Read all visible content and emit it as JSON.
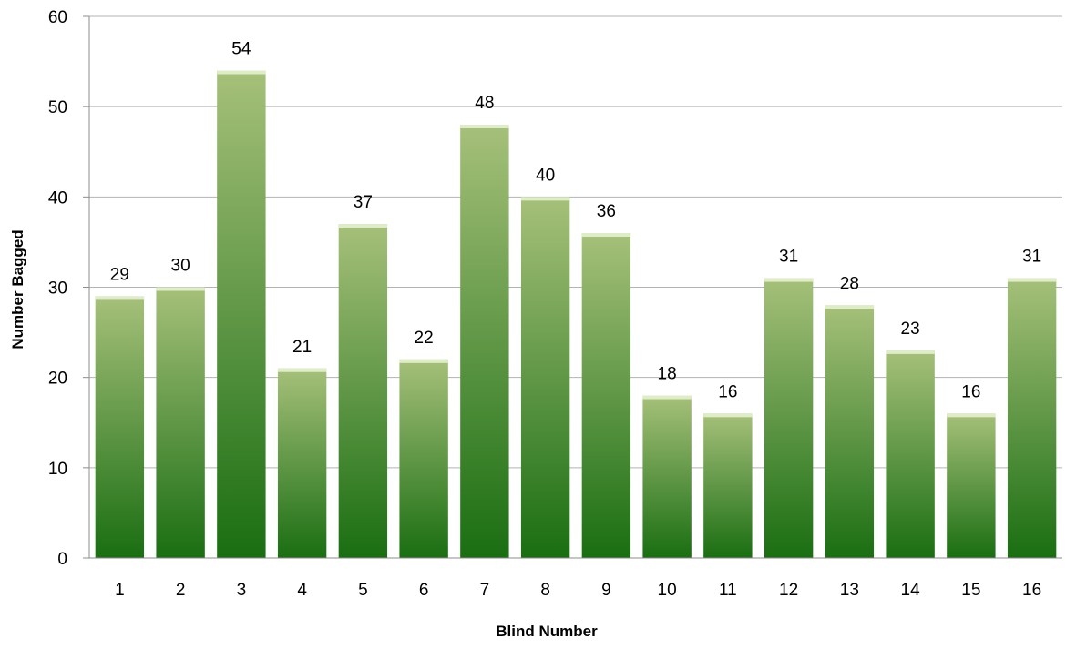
{
  "chart_data": {
    "type": "bar",
    "categories": [
      "1",
      "2",
      "3",
      "4",
      "5",
      "6",
      "7",
      "8",
      "9",
      "10",
      "11",
      "12",
      "13",
      "14",
      "15",
      "16"
    ],
    "values": [
      29,
      30,
      54,
      21,
      37,
      22,
      48,
      40,
      36,
      18,
      16,
      31,
      28,
      23,
      16,
      31
    ],
    "data_labels": [
      "29",
      "30",
      "54",
      "21",
      "37",
      "22",
      "48",
      "40",
      "36",
      "18",
      "16",
      "31",
      "28",
      "23",
      "16",
      "31"
    ],
    "title": "",
    "xlabel": "Blind Number",
    "ylabel": "Number Bagged",
    "ylim": [
      0,
      60
    ],
    "yticks": [
      0,
      10,
      20,
      30,
      40,
      50,
      60
    ],
    "ytick_labels": [
      "0",
      "10",
      "20",
      "30",
      "40",
      "50",
      "60"
    ],
    "grid": true,
    "legend": "none",
    "colors": {
      "bar_bottom": "#1a6e12",
      "bar_top": "#a6c07a",
      "bar_cap": "#dfecc8",
      "gridline": "#b3b3b3"
    }
  }
}
